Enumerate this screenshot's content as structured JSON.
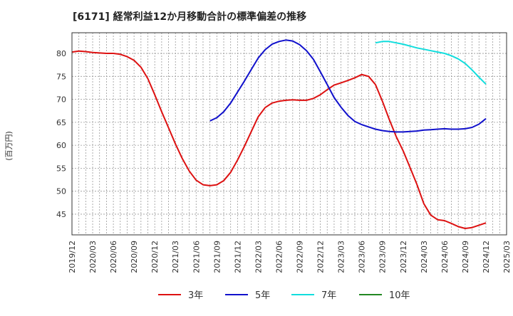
{
  "chart_data": {
    "type": "line",
    "title": "[6171]  経常利益12か月移動合計の標準偏差の推移",
    "ylabel": "(百万円)",
    "xlabel": "",
    "ylim": [
      40.5,
      84.5
    ],
    "yticks": [
      45,
      50,
      55,
      60,
      65,
      70,
      75,
      80
    ],
    "x_range": [
      "2019-12",
      "2025-03"
    ],
    "xticks": [
      "2019/12",
      "2020/03",
      "2020/06",
      "2020/09",
      "2020/12",
      "2021/03",
      "2021/06",
      "2021/09",
      "2021/12",
      "2022/03",
      "2022/06",
      "2022/09",
      "2022/12",
      "2023/03",
      "2023/06",
      "2023/09",
      "2023/12",
      "2024/03",
      "2024/06",
      "2024/09",
      "2024/12",
      "2025/03"
    ],
    "grid": true,
    "legend_position": "bottom",
    "series": [
      {
        "name": "3年",
        "color": "#dd1111",
        "points": [
          [
            "2019-12",
            80.3
          ],
          [
            "2020-01",
            80.5
          ],
          [
            "2020-02",
            80.4
          ],
          [
            "2020-03",
            80.2
          ],
          [
            "2020-04",
            80.1
          ],
          [
            "2020-05",
            80.0
          ],
          [
            "2020-06",
            80.0
          ],
          [
            "2020-07",
            79.8
          ],
          [
            "2020-08",
            79.3
          ],
          [
            "2020-09",
            78.5
          ],
          [
            "2020-10",
            77.0
          ],
          [
            "2020-11",
            74.5
          ],
          [
            "2020-12",
            71.0
          ],
          [
            "2021-01",
            67.3
          ],
          [
            "2021-02",
            63.8
          ],
          [
            "2021-03",
            60.3
          ],
          [
            "2021-04",
            57.1
          ],
          [
            "2021-05",
            54.4
          ],
          [
            "2021-06",
            52.4
          ],
          [
            "2021-07",
            51.4
          ],
          [
            "2021-08",
            51.2
          ],
          [
            "2021-09",
            51.4
          ],
          [
            "2021-10",
            52.3
          ],
          [
            "2021-11",
            54.1
          ],
          [
            "2021-12",
            56.8
          ],
          [
            "2022-01",
            59.8
          ],
          [
            "2022-02",
            63.0
          ],
          [
            "2022-03",
            66.2
          ],
          [
            "2022-04",
            68.2
          ],
          [
            "2022-05",
            69.2
          ],
          [
            "2022-06",
            69.6
          ],
          [
            "2022-07",
            69.8
          ],
          [
            "2022-08",
            69.9
          ],
          [
            "2022-09",
            69.8
          ],
          [
            "2022-10",
            69.8
          ],
          [
            "2022-11",
            70.2
          ],
          [
            "2022-12",
            71.0
          ],
          [
            "2023-01",
            72.1
          ],
          [
            "2023-02",
            73.1
          ],
          [
            "2023-03",
            73.6
          ],
          [
            "2023-04",
            74.1
          ],
          [
            "2023-05",
            74.7
          ],
          [
            "2023-06",
            75.4
          ],
          [
            "2023-07",
            75.0
          ],
          [
            "2023-08",
            73.2
          ],
          [
            "2023-09",
            69.6
          ],
          [
            "2023-10",
            65.6
          ],
          [
            "2023-11",
            61.9
          ],
          [
            "2023-12",
            58.8
          ],
          [
            "2024-01",
            55.2
          ],
          [
            "2024-02",
            51.5
          ],
          [
            "2024-03",
            47.3
          ],
          [
            "2024-04",
            44.8
          ],
          [
            "2024-05",
            43.8
          ],
          [
            "2024-06",
            43.6
          ],
          [
            "2024-07",
            43.0
          ],
          [
            "2024-08",
            42.3
          ],
          [
            "2024-09",
            41.9
          ],
          [
            "2024-10",
            42.1
          ],
          [
            "2024-11",
            42.6
          ],
          [
            "2024-12",
            43.1
          ]
        ]
      },
      {
        "name": "5年",
        "color": "#1111cc",
        "points": [
          [
            "2021-08",
            65.3
          ],
          [
            "2021-09",
            66.0
          ],
          [
            "2021-10",
            67.3
          ],
          [
            "2021-11",
            69.2
          ],
          [
            "2021-12",
            71.6
          ],
          [
            "2022-01",
            74.0
          ],
          [
            "2022-02",
            76.5
          ],
          [
            "2022-03",
            79.0
          ],
          [
            "2022-04",
            80.8
          ],
          [
            "2022-05",
            82.0
          ],
          [
            "2022-06",
            82.6
          ],
          [
            "2022-07",
            82.9
          ],
          [
            "2022-08",
            82.7
          ],
          [
            "2022-09",
            81.9
          ],
          [
            "2022-10",
            80.6
          ],
          [
            "2022-11",
            78.7
          ],
          [
            "2022-12",
            76.0
          ],
          [
            "2023-01",
            73.2
          ],
          [
            "2023-02",
            70.4
          ],
          [
            "2023-03",
            68.3
          ],
          [
            "2023-04",
            66.5
          ],
          [
            "2023-05",
            65.2
          ],
          [
            "2023-06",
            64.5
          ],
          [
            "2023-07",
            64.0
          ],
          [
            "2023-08",
            63.5
          ],
          [
            "2023-09",
            63.2
          ],
          [
            "2023-10",
            63.0
          ],
          [
            "2023-11",
            62.9
          ],
          [
            "2023-12",
            62.9
          ],
          [
            "2024-01",
            63.0
          ],
          [
            "2024-02",
            63.1
          ],
          [
            "2024-03",
            63.3
          ],
          [
            "2024-04",
            63.4
          ],
          [
            "2024-05",
            63.5
          ],
          [
            "2024-06",
            63.6
          ],
          [
            "2024-07",
            63.5
          ],
          [
            "2024-08",
            63.5
          ],
          [
            "2024-09",
            63.6
          ],
          [
            "2024-10",
            63.9
          ],
          [
            "2024-11",
            64.6
          ],
          [
            "2024-12",
            65.8
          ]
        ]
      },
      {
        "name": "7年",
        "color": "#11dddd",
        "points": [
          [
            "2023-08",
            82.3
          ],
          [
            "2023-09",
            82.6
          ],
          [
            "2023-10",
            82.6
          ],
          [
            "2023-11",
            82.3
          ],
          [
            "2023-12",
            82.0
          ],
          [
            "2024-01",
            81.6
          ],
          [
            "2024-02",
            81.2
          ],
          [
            "2024-03",
            80.9
          ],
          [
            "2024-04",
            80.6
          ],
          [
            "2024-05",
            80.3
          ],
          [
            "2024-06",
            80.0
          ],
          [
            "2024-07",
            79.5
          ],
          [
            "2024-08",
            78.8
          ],
          [
            "2024-09",
            77.8
          ],
          [
            "2024-10",
            76.4
          ],
          [
            "2024-11",
            74.8
          ],
          [
            "2024-12",
            73.3
          ]
        ]
      },
      {
        "name": "10年",
        "color": "#228822",
        "points": []
      }
    ]
  }
}
